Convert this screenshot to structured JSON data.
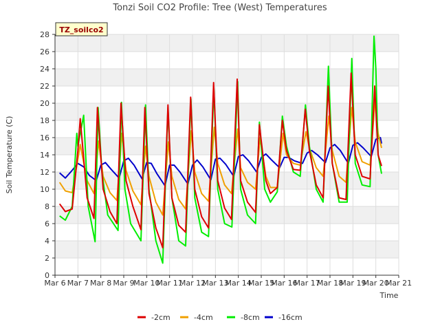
{
  "chart_data": {
    "type": "line",
    "title": "Tonzi Soil CO2 Profile: Tree (West) Temperatures",
    "site_label": "TZ_soilco2",
    "xlabel": "Time",
    "ylabel": "Soil Temperature (C)",
    "xlim": [
      6,
      21
    ],
    "ylim": [
      0,
      28
    ],
    "x_ticks": [
      6,
      7,
      8,
      9,
      10,
      11,
      12,
      13,
      14,
      15,
      16,
      17,
      18,
      19,
      20,
      21
    ],
    "x_tick_labels": [
      "Mar 6",
      "Mar 7",
      "Mar 8",
      "Mar 9",
      "Mar 10",
      "Mar 11",
      "Mar 12",
      "Mar 13",
      "Mar 14",
      "Mar 15",
      "Mar 16",
      "Mar 17",
      "Mar 18",
      "Mar 19",
      "Mar 20",
      "Mar 21"
    ],
    "y_ticks": [
      0,
      2,
      4,
      6,
      8,
      10,
      12,
      14,
      16,
      18,
      20,
      22,
      24,
      26,
      28
    ],
    "grid": true,
    "legend_position": "bottom",
    "series": [
      {
        "name": "-2cm",
        "color": "#dd0000",
        "x": [
          6.2,
          6.45,
          6.75,
          7.0,
          7.1,
          7.4,
          7.7,
          7.85,
          8.1,
          8.4,
          8.7,
          8.88,
          9.1,
          9.4,
          9.75,
          9.92,
          10.1,
          10.4,
          10.7,
          10.93,
          11.1,
          11.4,
          11.7,
          11.92,
          12.1,
          12.4,
          12.7,
          12.92,
          13.1,
          13.4,
          13.7,
          13.95,
          14.1,
          14.4,
          14.75,
          14.92,
          15.2,
          15.4,
          15.7,
          15.92,
          16.1,
          16.4,
          16.7,
          16.92,
          17.1,
          17.4,
          17.7,
          17.92,
          18.1,
          18.4,
          18.7,
          18.92,
          19.1,
          19.4,
          19.75,
          19.95,
          20.1,
          20.25
        ],
        "y": [
          8.3,
          7.4,
          7.7,
          14.5,
          18.2,
          9.0,
          6.6,
          19.5,
          10.0,
          7.4,
          6.0,
          20.0,
          11.0,
          8.0,
          5.3,
          19.5,
          9.5,
          5.5,
          3.2,
          19.8,
          9.0,
          5.8,
          5.0,
          20.7,
          10.0,
          6.8,
          5.5,
          22.4,
          11.0,
          7.8,
          6.5,
          22.8,
          11.0,
          8.5,
          7.3,
          17.5,
          11.0,
          9.5,
          10.2,
          18.0,
          14.5,
          12.3,
          12.2,
          19.3,
          14.5,
          10.5,
          9.0,
          22.0,
          13.0,
          9.0,
          8.8,
          23.5,
          14.0,
          11.5,
          11.2,
          22.0,
          14.0,
          12.7
        ]
      },
      {
        "name": "-4cm",
        "color": "#f0a000",
        "x": [
          6.2,
          6.45,
          6.75,
          7.0,
          7.1,
          7.4,
          7.7,
          7.9,
          8.1,
          8.4,
          8.7,
          8.92,
          9.1,
          9.4,
          9.75,
          9.95,
          10.1,
          10.4,
          10.7,
          10.95,
          11.1,
          11.4,
          11.7,
          11.95,
          12.1,
          12.4,
          12.7,
          12.95,
          13.1,
          13.4,
          13.7,
          13.97,
          14.1,
          14.4,
          14.75,
          14.95,
          15.2,
          15.4,
          15.7,
          15.95,
          16.1,
          16.4,
          16.7,
          16.95,
          17.1,
          17.4,
          17.7,
          17.95,
          18.1,
          18.4,
          18.7,
          18.95,
          19.1,
          19.4,
          19.75,
          19.97,
          20.1,
          20.25
        ],
        "y": [
          10.8,
          9.8,
          9.6,
          13.5,
          15.2,
          11.0,
          9.5,
          15.6,
          11.5,
          9.6,
          8.7,
          16.5,
          12.2,
          9.8,
          8.2,
          15.0,
          11.5,
          8.5,
          7.0,
          15.5,
          11.5,
          8.8,
          7.7,
          16.8,
          12.0,
          9.5,
          8.6,
          17.2,
          13.0,
          10.5,
          9.5,
          17.0,
          12.5,
          10.8,
          10.0,
          16.0,
          11.5,
          10.2,
          10.2,
          16.5,
          14.0,
          13.0,
          12.8,
          16.7,
          14.8,
          12.5,
          11.5,
          18.5,
          14.5,
          11.5,
          10.8,
          19.5,
          15.5,
          13.2,
          12.8,
          20.5,
          16.5,
          14.8
        ]
      },
      {
        "name": "-8cm",
        "color": "#00ee00",
        "x": [
          6.2,
          6.45,
          6.75,
          6.95,
          7.0,
          7.25,
          7.45,
          7.75,
          7.88,
          8.05,
          8.3,
          8.75,
          8.9,
          9.05,
          9.3,
          9.75,
          9.95,
          10.1,
          10.4,
          10.7,
          10.93,
          11.1,
          11.4,
          11.7,
          11.93,
          12.1,
          12.4,
          12.7,
          12.93,
          13.1,
          13.4,
          13.72,
          13.97,
          14.1,
          14.4,
          14.75,
          14.92,
          15.15,
          15.4,
          15.7,
          15.92,
          16.1,
          16.4,
          16.7,
          16.93,
          17.1,
          17.4,
          17.7,
          17.93,
          18.1,
          18.4,
          18.75,
          18.95,
          19.1,
          19.4,
          19.75,
          19.92,
          20.0,
          20.1,
          20.25
        ],
        "y": [
          6.9,
          6.4,
          8.0,
          16.5,
          15.0,
          18.6,
          8.0,
          3.9,
          19.5,
          12.0,
          7.0,
          5.2,
          20.1,
          10.0,
          6.0,
          4.0,
          19.8,
          10.0,
          4.0,
          1.4,
          19.5,
          9.0,
          4.0,
          3.4,
          20.5,
          9.0,
          5.0,
          4.5,
          21.8,
          10.0,
          6.0,
          5.6,
          22.5,
          10.0,
          7.0,
          6.0,
          17.8,
          10.0,
          8.5,
          9.7,
          18.5,
          15.0,
          12.0,
          11.5,
          19.8,
          15.0,
          10.0,
          8.5,
          24.3,
          13.0,
          8.5,
          8.5,
          25.2,
          13.0,
          10.5,
          10.3,
          27.8,
          24.0,
          14.0,
          11.8
        ]
      },
      {
        "name": "-16cm",
        "color": "#0000cc",
        "x": [
          6.2,
          6.45,
          6.75,
          7.0,
          7.25,
          7.5,
          7.8,
          8.0,
          8.2,
          8.45,
          8.8,
          9.0,
          9.2,
          9.45,
          9.8,
          10.0,
          10.2,
          10.45,
          10.8,
          11.0,
          11.2,
          11.45,
          11.8,
          12.0,
          12.2,
          12.45,
          12.8,
          13.0,
          13.2,
          13.45,
          13.8,
          14.0,
          14.2,
          14.45,
          14.8,
          15.0,
          15.2,
          15.45,
          15.8,
          16.0,
          16.2,
          16.45,
          16.8,
          17.0,
          17.2,
          17.45,
          17.8,
          18.0,
          18.2,
          18.45,
          18.8,
          19.0,
          19.2,
          19.45,
          19.8,
          20.0,
          20.2,
          20.25
        ],
        "y": [
          11.9,
          11.3,
          12.2,
          13.0,
          12.6,
          11.6,
          11.0,
          12.8,
          13.1,
          12.3,
          11.3,
          13.3,
          13.6,
          12.8,
          11.2,
          13.1,
          13.0,
          11.8,
          10.4,
          12.8,
          12.8,
          12.0,
          10.6,
          12.8,
          13.4,
          12.6,
          11.1,
          13.5,
          13.6,
          12.9,
          11.5,
          13.8,
          14.0,
          13.3,
          12.0,
          13.7,
          14.1,
          13.4,
          12.5,
          13.7,
          13.7,
          13.3,
          13.0,
          14.2,
          14.5,
          14.0,
          13.1,
          14.8,
          15.2,
          14.5,
          13.0,
          15.1,
          15.4,
          14.8,
          13.8,
          15.8,
          16.0,
          15.3
        ]
      }
    ]
  }
}
